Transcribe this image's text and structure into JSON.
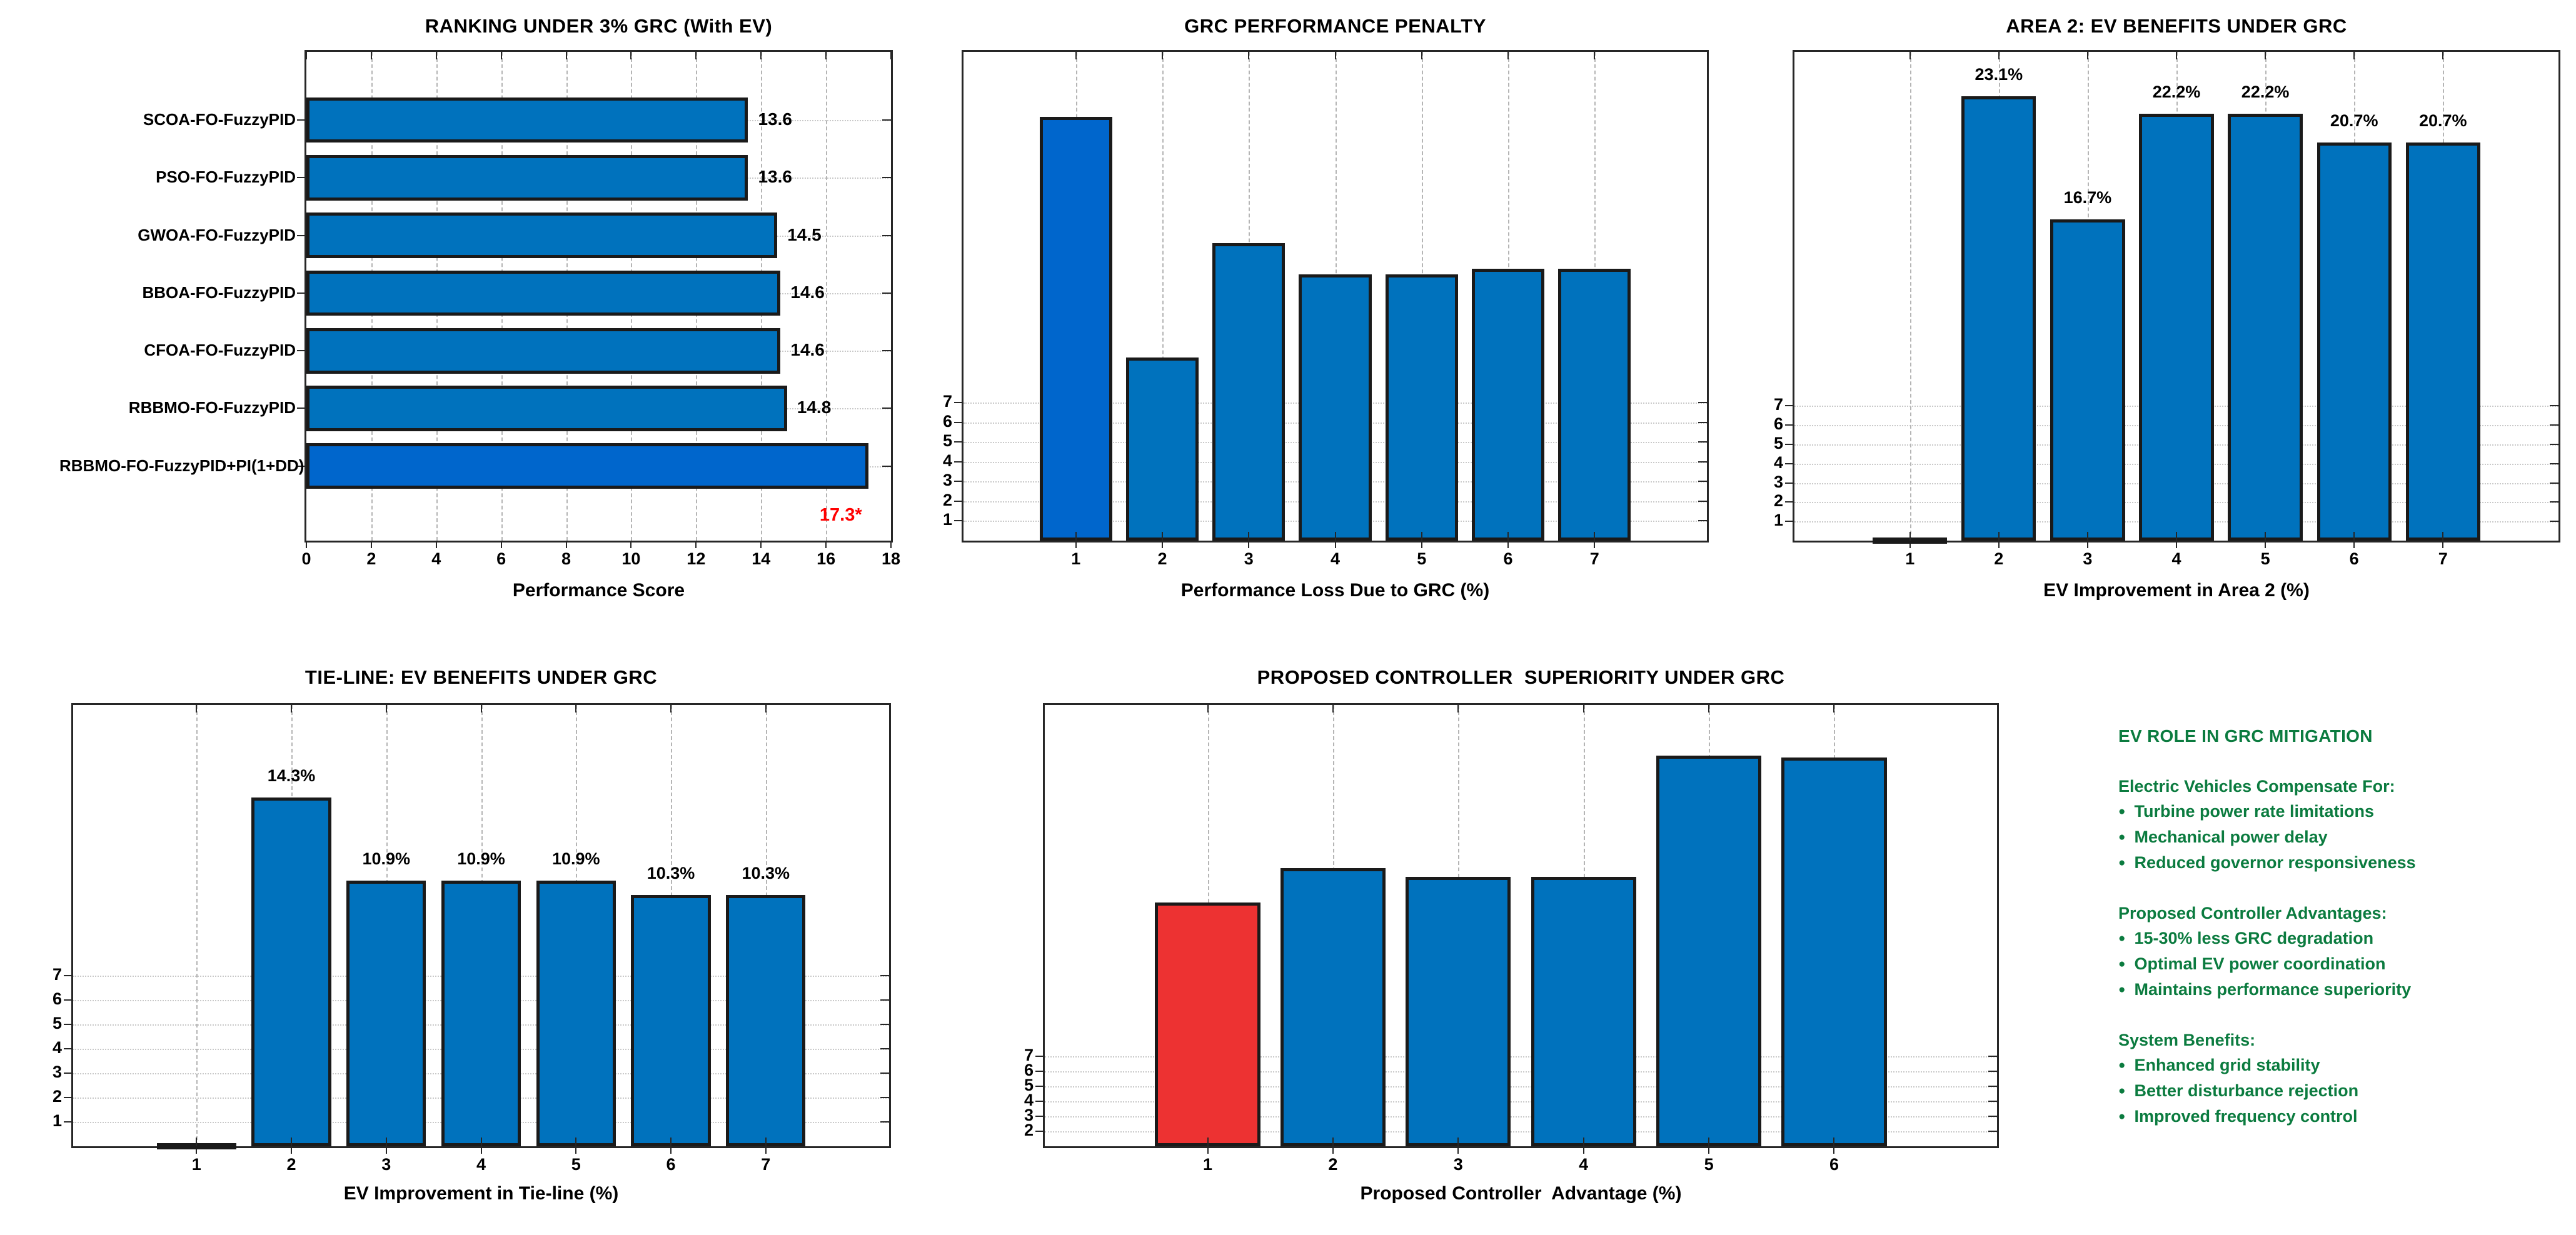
{
  "colors": {
    "bar_default": "#0072BD",
    "bar_highlight": "#0066CC",
    "bar_alert": "#ED3232",
    "bar_edge": "#1a1a1a",
    "axis": "#262626",
    "grid_dashed": "#b5b5b5",
    "grid_dotted": "#c9c9c9",
    "text": "#000000",
    "special_label": "#FF0000",
    "notes_green": "#0B7B3F"
  },
  "chart_data": [
    {
      "id": "ranking",
      "type": "barh",
      "title": "RANKING UNDER 3% GRC (With EV)",
      "xlabel": "Performance Score",
      "categories": [
        "SCOA-FO-FuzzyPID",
        "PSO-FO-FuzzyPID",
        "GWOA-FO-FuzzyPID",
        "BBOA-FO-FuzzyPID",
        "CFOA-FO-FuzzyPID",
        "RBBMO-FO-FuzzyPID",
        "RBBMO-FO-FuzzyPID+PI(1+DD)"
      ],
      "values": [
        13.6,
        13.6,
        14.5,
        14.6,
        14.6,
        14.8,
        17.3
      ],
      "value_labels": [
        "13.6",
        "13.6",
        "14.5",
        "14.6",
        "14.6",
        "14.8",
        ""
      ],
      "special_label": "17.3*",
      "xlim": [
        0,
        18
      ],
      "xticks": [
        0,
        2,
        4,
        6,
        8,
        10,
        12,
        14,
        16,
        18
      ],
      "highlight_index": 6,
      "grid": "on"
    },
    {
      "id": "penalty",
      "type": "bar",
      "title": "GRC PERFORMANCE PENALTY",
      "xlabel": "Performance Loss Due to GRC (%)",
      "x": [
        1,
        2,
        3,
        4,
        5,
        6,
        7
      ],
      "values": [
        21.5,
        9.3,
        15.1,
        13.5,
        13.5,
        13.8,
        13.8
      ],
      "bar_labels": [
        "",
        "",
        "",
        "",
        "",
        "",
        ""
      ],
      "xlim": [
        -0.3,
        8.3
      ],
      "ylim": [
        0,
        24.8
      ],
      "yticks": [
        1,
        2,
        3,
        4,
        5,
        6,
        7
      ],
      "highlight_index": 0,
      "grid": "on"
    },
    {
      "id": "area2",
      "type": "bar",
      "title": "AREA 2: EV BENEFITS UNDER GRC",
      "xlabel": "EV Improvement in Area 2 (%)",
      "x": [
        1,
        2,
        3,
        4,
        5,
        6,
        7
      ],
      "values": [
        0.15,
        23.1,
        16.7,
        22.2,
        22.2,
        20.7,
        20.7
      ],
      "bar_labels": [
        "",
        "23.1%",
        "16.7%",
        "22.2%",
        "22.2%",
        "20.7%",
        "20.7%"
      ],
      "xlim": [
        -0.3,
        8.3
      ],
      "ylim": [
        0,
        25.4
      ],
      "yticks": [
        1,
        2,
        3,
        4,
        5,
        6,
        7
      ],
      "grid": "on"
    },
    {
      "id": "tieline",
      "type": "bar",
      "title": "TIE-LINE: EV BENEFITS UNDER GRC",
      "xlabel": "EV Improvement in Tie-line (%)",
      "x": [
        1,
        2,
        3,
        4,
        5,
        6,
        7
      ],
      "values": [
        0.1,
        14.3,
        10.9,
        10.9,
        10.9,
        10.3,
        10.3
      ],
      "bar_labels": [
        "",
        "14.3%",
        "10.9%",
        "10.9%",
        "10.9%",
        "10.3%",
        "10.3%"
      ],
      "xlim": [
        -0.3,
        8.3
      ],
      "ylim": [
        0,
        18.1
      ],
      "yticks": [
        1,
        2,
        3,
        4,
        5,
        6,
        7
      ],
      "grid": "on"
    },
    {
      "id": "superiority",
      "type": "bar",
      "title": "PROPOSED CONTROLLER  SUPERIORITY UNDER GRC",
      "xlabel": "Proposed Controller  Advantage (%)",
      "x": [
        1,
        2,
        3,
        4,
        5,
        6
      ],
      "values": [
        17.3,
        19.6,
        19.0,
        19.0,
        27.1,
        27.0
      ],
      "bar_labels": [
        "",
        "",
        "",
        "",
        "",
        ""
      ],
      "xlim": [
        -0.3,
        7.3
      ],
      "ylim": [
        1,
        30.5
      ],
      "yticks": [
        2,
        3,
        4,
        5,
        6,
        7
      ],
      "alert_index": 0,
      "grid": "on"
    }
  ],
  "notes": {
    "heading": "EV ROLE IN GRC MITIGATION",
    "sections": [
      {
        "title": "Electric Vehicles Compensate For:",
        "bullets": [
          "Turbine power rate limitations",
          "Mechanical power delay",
          "Reduced governor responsiveness"
        ]
      },
      {
        "title": "Proposed Controller Advantages:",
        "bullets": [
          "15-30% less GRC degradation",
          "Optimal EV power coordination",
          "Maintains performance superiority"
        ]
      },
      {
        "title": "System Benefits:",
        "bullets": [
          "Enhanced grid stability",
          "Better disturbance rejection",
          "Improved frequency control"
        ]
      }
    ]
  }
}
